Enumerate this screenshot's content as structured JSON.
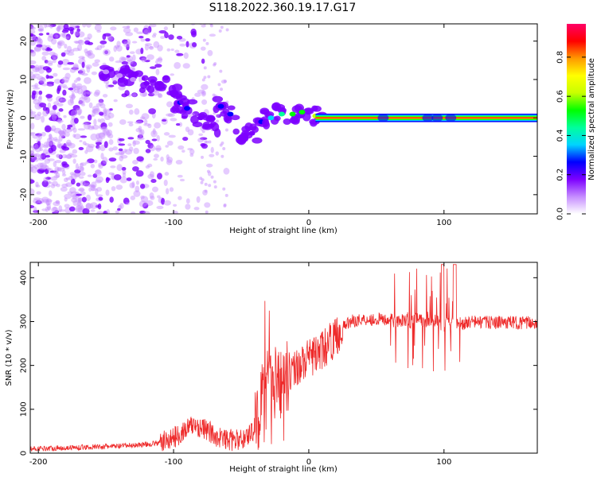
{
  "chart_data": [
    {
      "type": "heatmap",
      "title": "S118.2022.360.19.17.G17",
      "xlabel": "Height of straight line (km)",
      "ylabel": "Frequency (Hz)",
      "xlim": [
        -206,
        169
      ],
      "ylim": [
        -25,
        24.5
      ],
      "xticks": [
        -200,
        -100,
        0,
        100
      ],
      "yticks": [
        -20,
        -10,
        0,
        10,
        20
      ],
      "colorbar": {
        "label": "Normalized spectral amplitude",
        "range": [
          0,
          0.97
        ],
        "ticks": [
          "0.0",
          "0.2",
          "0.4",
          "0.6",
          "0.8"
        ],
        "colors": [
          "#ffffff",
          "#c58cff",
          "#7d00ff",
          "#0000ff",
          "#00d4ff",
          "#00ff9c",
          "#00ff00",
          "#c8ff00",
          "#ffff00",
          "#ff9900",
          "#ff0000",
          "#ff0066"
        ]
      },
      "ridge": [
        {
          "x": -150,
          "y": 12,
          "a": 0.1
        },
        {
          "x": -140,
          "y": 11,
          "a": 0.12
        },
        {
          "x": -130,
          "y": 10,
          "a": 0.12
        },
        {
          "x": -120,
          "y": 9,
          "a": 0.15
        },
        {
          "x": -110,
          "y": 9,
          "a": 0.18
        },
        {
          "x": -100,
          "y": 6,
          "a": 0.2
        },
        {
          "x": -95,
          "y": 4,
          "a": 0.24
        },
        {
          "x": -90,
          "y": 2.5,
          "a": 0.28
        },
        {
          "x": -80,
          "y": 0,
          "a": 0.2
        },
        {
          "x": -72,
          "y": -2,
          "a": 0.22
        },
        {
          "x": -65,
          "y": 3,
          "a": 0.25
        },
        {
          "x": -58,
          "y": 1,
          "a": 0.26
        },
        {
          "x": -50,
          "y": -5,
          "a": 0.2
        },
        {
          "x": -42,
          "y": -4,
          "a": 0.2
        },
        {
          "x": -35,
          "y": -1,
          "a": 0.25
        },
        {
          "x": -28,
          "y": 0,
          "a": 0.35
        },
        {
          "x": -20,
          "y": 1,
          "a": 0.45
        },
        {
          "x": -12,
          "y": 1,
          "a": 0.5
        },
        {
          "x": -5,
          "y": 1.5,
          "a": 0.55
        },
        {
          "x": 5,
          "y": 0.5,
          "a": 0.6
        }
      ],
      "tone_line": {
        "x_start": 5,
        "x_end": 169,
        "y": 0,
        "band": 1.2
      }
    },
    {
      "type": "line",
      "xlabel": "Height of straight line (km)",
      "ylabel": "SNR (10 * v/v)",
      "xlim": [
        -206,
        169
      ],
      "ylim": [
        0,
        435
      ],
      "xticks": [
        -200,
        -100,
        0,
        100
      ],
      "yticks": [
        0,
        100,
        200,
        300,
        400
      ],
      "color": "#ee2a2a",
      "series": [
        {
          "name": "SNR",
          "x": [
            -206,
            -180,
            -160,
            -140,
            -120,
            -110,
            -100,
            -95,
            -90,
            -85,
            -80,
            -75,
            -70,
            -60,
            -50,
            -42,
            -38,
            -35,
            -30,
            -25,
            -20,
            -15,
            -10,
            -5,
            0,
            5,
            10,
            15,
            20,
            25,
            30,
            40,
            50,
            60,
            65,
            70,
            75,
            80,
            85,
            90,
            95,
            98,
            100,
            102,
            105,
            108,
            110,
            115,
            120,
            130,
            140,
            150,
            160,
            169
          ],
          "y": [
            10,
            12,
            14,
            16,
            20,
            24,
            35,
            45,
            55,
            65,
            58,
            52,
            40,
            30,
            30,
            48,
            75,
            110,
            140,
            160,
            170,
            185,
            195,
            205,
            215,
            225,
            235,
            250,
            265,
            285,
            300,
            305,
            305,
            305,
            300,
            305,
            300,
            305,
            300,
            305,
            300,
            290,
            290,
            305,
            300,
            300,
            295,
            295,
            300,
            298,
            298,
            298,
            297,
            298
          ]
        }
      ]
    }
  ]
}
